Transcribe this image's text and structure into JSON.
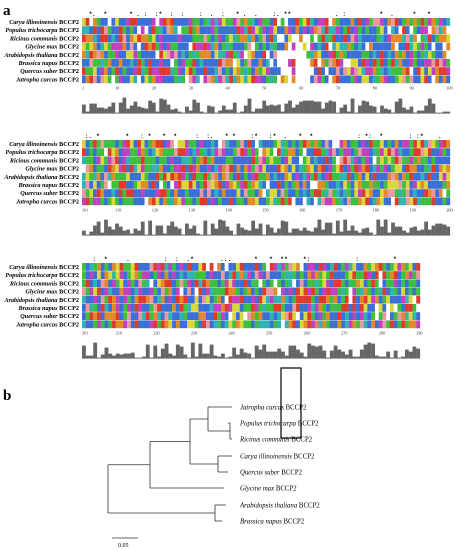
{
  "panel_a": {
    "letter": "a"
  },
  "panel_b": {
    "letter": "b"
  },
  "species": [
    {
      "genus": "Carya illinoinensis",
      "suffix": "BCCP2"
    },
    {
      "genus": "Populus trichocarpa",
      "suffix": "BCCP2"
    },
    {
      "genus": "Ricinus communis",
      "suffix": "BCCP2"
    },
    {
      "genus": "Glycine max",
      "suffix": "BCCP2"
    },
    {
      "genus": "Arabidopsis thaliana",
      "suffix": "BCCP2"
    },
    {
      "genus": "Brassica napus",
      "suffix": "BCCP2"
    },
    {
      "genus": "Quercus suber",
      "suffix": "BCCP2"
    },
    {
      "genus": "Jatropha curcas",
      "suffix": "BCCP2"
    }
  ],
  "blocks": [
    {
      "positions": [
        "1",
        "10",
        "20",
        "30",
        "40",
        "50",
        "60",
        "70",
        "80",
        "90",
        "100"
      ]
    },
    {
      "positions": [
        "101",
        "110",
        "120",
        "130",
        "140",
        "150",
        "160",
        "170",
        "180",
        "190",
        "200"
      ]
    },
    {
      "positions": [
        "201",
        "210",
        "220",
        "230",
        "240",
        "250",
        "260",
        "270",
        "280",
        "290"
      ]
    }
  ],
  "residue_colors": {
    "hydrophobic": "#3b6fd6",
    "positive": "#e03a2a",
    "negative": "#c040c0",
    "polar": "#3fbf3f",
    "glycine": "#e08a2a",
    "proline": "#d8d83a",
    "aromatic": "#2fb3b3",
    "cysteine": "#e89aa0",
    "gap": "#ffffff"
  },
  "conservation_color": "#666666",
  "tree": {
    "leaves": [
      {
        "genus": "Jatropha curcas",
        "suffix": "BCCP2"
      },
      {
        "genus": "Populus trichocarpa",
        "suffix": "BCCP2"
      },
      {
        "genus": "Ricinus communis",
        "suffix": "BCCP2"
      },
      {
        "genus": "Carya illinoinensis",
        "suffix": "BCCP2"
      },
      {
        "genus": "Quercus suber",
        "suffix": "BCCP2"
      },
      {
        "genus": "Glycine max",
        "suffix": "BCCP2"
      },
      {
        "genus": "Arabidopsis thaliana",
        "suffix": "BCCP2"
      },
      {
        "genus": "Brassica napus",
        "suffix": "BCCP2"
      }
    ],
    "scale_label": "0.05"
  }
}
